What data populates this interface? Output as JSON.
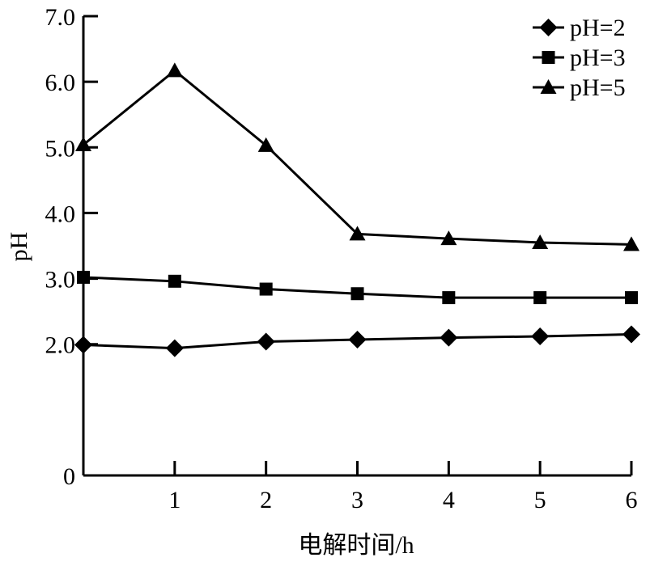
{
  "chart_data": {
    "type": "line",
    "title": "",
    "xlabel": "电解时间/h",
    "ylabel": "pH",
    "x": [
      0,
      1,
      2,
      3,
      4,
      5,
      6
    ],
    "xlim": [
      0,
      6
    ],
    "ylim": [
      0,
      7
    ],
    "x_tick_labels": [
      "1",
      "2",
      "3",
      "4",
      "5",
      "6"
    ],
    "y_tick_labels": [
      "0",
      "2.0",
      "3.0",
      "4.0",
      "5.0",
      "6.0",
      "7.0"
    ],
    "y_tick_values": [
      0,
      2,
      3,
      4,
      5,
      6,
      7
    ],
    "grid": false,
    "legend_position": "top-right",
    "series": [
      {
        "name": "pH=2",
        "marker": "diamond",
        "values": [
          1.99,
          1.94,
          2.04,
          2.07,
          2.1,
          2.12,
          2.15
        ]
      },
      {
        "name": "pH=3",
        "marker": "square",
        "values": [
          3.02,
          2.96,
          2.84,
          2.77,
          2.71,
          2.71,
          2.71
        ]
      },
      {
        "name": "pH=5",
        "marker": "triangle",
        "values": [
          5.04,
          6.17,
          5.03,
          3.68,
          3.61,
          3.55,
          3.52
        ]
      }
    ],
    "colors": {
      "line": "#000000",
      "marker": "#000000",
      "background": "#ffffff"
    }
  }
}
